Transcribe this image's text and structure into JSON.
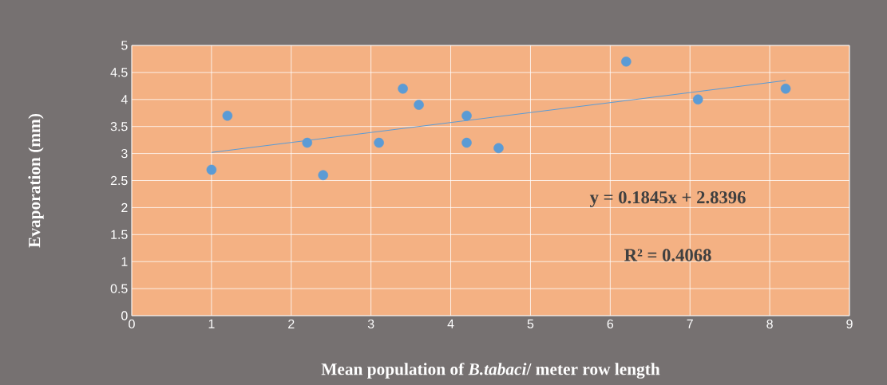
{
  "chart_data": {
    "type": "scatter",
    "xlabel": "Mean population of *B.tabaci*/ meter row length",
    "ylabel": "Evaporation (mm)",
    "series": [
      {
        "marker": "circle",
        "color": "#5b9bd5",
        "x": [
          1,
          1.2,
          2.2,
          2.4,
          3.1,
          3.4,
          3.6,
          4.2,
          4.2,
          4.6,
          6.2,
          7.1,
          8.2
        ],
        "values": [
          2.7,
          3.7,
          3.2,
          2.6,
          3.2,
          4.2,
          3.9,
          3.7,
          3.2,
          3.1,
          4.7,
          4.0,
          4.2
        ]
      },
      {
        "type": "line",
        "marker": "none",
        "color": "#5b9bd5",
        "x": [
          1,
          8.2
        ],
        "values": [
          3.02,
          4.35
        ]
      }
    ],
    "annotations": [
      "y = 0.1845x + 2.8396",
      "R² = 0.4068"
    ],
    "xlim": [
      0,
      9
    ],
    "xticks": [
      0,
      1,
      2,
      3,
      4,
      5,
      6,
      7,
      8,
      9
    ],
    "ylim": [
      0,
      5
    ],
    "yticks": [
      0,
      0.5,
      1,
      1.5,
      2,
      2.5,
      3,
      3.5,
      4,
      4.5,
      5
    ],
    "grid": true
  }
}
